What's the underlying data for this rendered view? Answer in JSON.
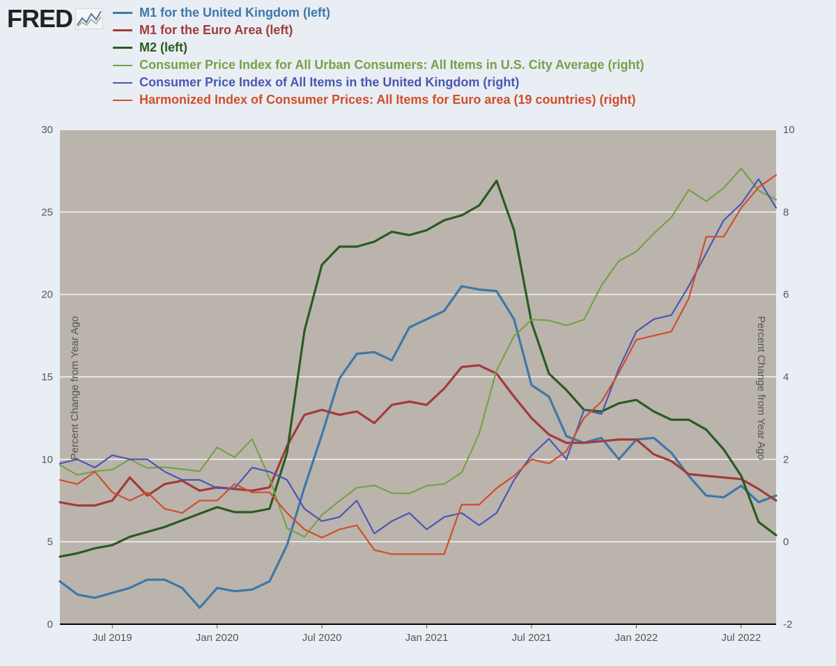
{
  "logo": {
    "text": "FRED"
  },
  "chart": {
    "type": "line",
    "background_color": "#e8eef3",
    "plot_background": "#bab4ad",
    "grid_color": "#f5f5f5",
    "baseline_color": "#000000",
    "line_width": 2.6,
    "axis_label_color": "#555555",
    "tick_fontsize": 15,
    "legend_fontsize": 18,
    "y_left": {
      "label": "Percent Change from Year Ago",
      "min": 0,
      "max": 30,
      "ticks": [
        0,
        5,
        10,
        15,
        20,
        25,
        30
      ]
    },
    "y_right": {
      "label": "Percent Change from Year Ago",
      "min": -2,
      "max": 10,
      "ticks": [
        -2,
        0,
        2,
        4,
        6,
        8,
        10
      ]
    },
    "x": {
      "min": 0,
      "max": 41,
      "ticks": [
        3,
        9,
        15,
        21,
        27,
        33,
        39
      ],
      "tick_labels": [
        "Jul 2019",
        "Jan 2020",
        "Jul 2020",
        "Jan 2021",
        "Jul 2021",
        "Jan 2022",
        "Jul 2022"
      ]
    },
    "series": [
      {
        "name": "M1 for the United Kingdom (left)",
        "color": "#3e77a8",
        "width": 3.2,
        "axis": "left",
        "values": [
          2.6,
          1.8,
          1.6,
          1.9,
          2.2,
          2.7,
          2.7,
          2.2,
          1.0,
          2.2,
          2.0,
          2.1,
          2.6,
          4.8,
          8.3,
          11.5,
          14.9,
          16.4,
          16.5,
          16.0,
          18.0,
          18.5,
          19.0,
          20.5,
          20.3,
          20.2,
          18.5,
          14.5,
          13.8,
          11.4,
          11.0,
          11.3,
          10.0,
          11.2,
          11.3,
          10.4,
          9.0,
          7.8,
          7.7,
          8.4,
          7.4,
          7.8
        ]
      },
      {
        "name": "M1 for the Euro Area (left)",
        "color": "#a13b3b",
        "width": 3.2,
        "axis": "left",
        "values": [
          7.4,
          7.2,
          7.2,
          7.5,
          8.9,
          7.8,
          8.5,
          8.7,
          8.1,
          8.3,
          8.2,
          8.1,
          8.3,
          10.8,
          12.7,
          13.0,
          12.7,
          12.9,
          12.2,
          13.3,
          13.5,
          13.3,
          14.3,
          15.6,
          15.7,
          15.2,
          13.8,
          12.5,
          11.5,
          11.0,
          11.0,
          11.1,
          11.2,
          11.2,
          10.3,
          9.9,
          9.1,
          9.0,
          8.9,
          8.8,
          8.2,
          7.5
        ]
      },
      {
        "name": "M2 (left)",
        "color": "#2b5a1f",
        "width": 3.2,
        "axis": "left",
        "values": [
          4.1,
          4.3,
          4.6,
          4.8,
          5.3,
          5.6,
          5.9,
          6.3,
          6.7,
          7.1,
          6.8,
          6.8,
          7.0,
          10.4,
          17.8,
          21.8,
          22.9,
          22.9,
          23.2,
          23.8,
          23.6,
          23.9,
          24.5,
          24.8,
          25.4,
          26.9,
          23.9,
          18.3,
          15.2,
          14.2,
          13.0,
          12.9,
          13.4,
          13.6,
          12.9,
          12.4,
          12.4,
          11.8,
          10.6,
          9.0,
          6.2,
          5.4
        ]
      },
      {
        "name": "Consumer Price Index for All Urban Consumers: All Items in U.S. City Average (right)",
        "color": "#76a146",
        "width": 2.2,
        "axis": "right",
        "values": [
          1.86,
          1.62,
          1.71,
          1.75,
          2.0,
          1.79,
          1.81,
          1.76,
          1.71,
          2.29,
          2.05,
          2.49,
          1.54,
          0.33,
          0.12,
          0.65,
          0.99,
          1.31,
          1.37,
          1.18,
          1.17,
          1.36,
          1.4,
          1.68,
          2.62,
          4.16,
          4.99,
          5.39,
          5.37,
          5.25,
          5.39,
          6.22,
          6.81,
          7.04,
          7.48,
          7.87,
          8.54,
          8.26,
          8.58,
          9.06,
          8.52,
          8.3
        ]
      },
      {
        "name": "Consumer Price Index of All Items in the United Kingdom (right)",
        "color": "#4a56b4",
        "width": 2.2,
        "axis": "right",
        "values": [
          1.9,
          2.0,
          1.8,
          2.1,
          2.0,
          2.0,
          1.7,
          1.5,
          1.5,
          1.3,
          1.3,
          1.8,
          1.7,
          1.5,
          0.8,
          0.5,
          0.6,
          1.0,
          0.2,
          0.5,
          0.7,
          0.3,
          0.6,
          0.7,
          0.4,
          0.7,
          1.5,
          2.1,
          2.5,
          2.0,
          3.2,
          3.1,
          4.2,
          5.1,
          5.4,
          5.5,
          6.2,
          7.0,
          7.8,
          8.2,
          8.8,
          8.1
        ]
      },
      {
        "name": "Harmonized Index of Consumer Prices: All Items for Euro area (19 countries) (right)",
        "color": "#d14d2b",
        "width": 2.2,
        "axis": "right",
        "values": [
          1.5,
          1.4,
          1.7,
          1.2,
          1.0,
          1.2,
          0.8,
          0.7,
          1.0,
          1.0,
          1.4,
          1.2,
          1.2,
          0.7,
          0.3,
          0.1,
          0.3,
          0.4,
          -0.2,
          -0.3,
          -0.3,
          -0.3,
          -0.3,
          0.9,
          0.9,
          1.3,
          1.6,
          2.0,
          1.9,
          2.2,
          3.0,
          3.4,
          4.1,
          4.9,
          5.0,
          5.1,
          5.9,
          7.4,
          7.4,
          8.1,
          8.6,
          8.9
        ]
      }
    ]
  }
}
